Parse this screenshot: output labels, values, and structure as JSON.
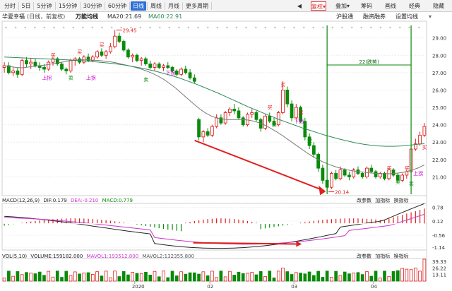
{
  "toolbar": {
    "periods": [
      "分时",
      "5日",
      "5分钟",
      "15分钟",
      "30分钟",
      "60分钟",
      "日线",
      "周线",
      "月线",
      "更多周期"
    ],
    "active_period": "日线",
    "right_items": [
      "复权",
      "叠加",
      "筹码",
      "画线",
      "经典",
      "隐藏"
    ],
    "active_right": "复权"
  },
  "info": {
    "name": "华夏幸福",
    "mode": "(日线，前复权)",
    "indicator": "万能均线",
    "ma20": "MA20:21.69",
    "ma60": "MA60:22.91",
    "links": [
      "沪股通",
      "融资融券",
      "设置均线"
    ]
  },
  "main_axis": [
    "29.00",
    "28.00",
    "27.00",
    "26.00",
    "25.00",
    "24.00",
    "23.00",
    "22.00",
    "21.00"
  ],
  "annotations": {
    "high": "29.45",
    "low": "20.14",
    "span": "22(跌势)"
  },
  "signals": {
    "buy": "买",
    "sell": "卖",
    "up": "上拐",
    "down": "下拐"
  },
  "macd": {
    "title": "MACD(12,26,9)",
    "dif": "DIF:0.179",
    "dea": "DEA:-0.210",
    "macd": "MACD:0.779",
    "links": [
      "改参数",
      "加指标",
      "换指标"
    ],
    "axis": [
      "0.78",
      "0.12",
      "-0.56",
      "-1.14"
    ]
  },
  "vol": {
    "title": "VOL(5,10)",
    "volume": "VOLUME:159182.000",
    "mavol1": "MAVOL1:193512.800",
    "mavol2": "MAVOL2:132355.800",
    "links": [
      "改参数",
      "加指标",
      "换指标"
    ],
    "axis": [
      "39.33",
      "26.22",
      "13.11"
    ]
  },
  "x_labels": [
    "2020",
    "02",
    "03",
    "04"
  ],
  "colors": {
    "up": "#e02020",
    "down": "#0a8a0a",
    "ma20": "#333333",
    "ma60": "#2e8b57",
    "dea": "#cc33cc",
    "arrow": "#e02020",
    "guide": "#0a8a0a",
    "signal": "#cc00cc"
  },
  "chart_data": {
    "type": "candlestick",
    "ylim": [
      20,
      29.8
    ],
    "candles": [
      [
        27.3,
        27.6,
        27.0,
        27.4
      ],
      [
        27.4,
        27.6,
        26.9,
        27.0
      ],
      [
        27.0,
        27.3,
        26.8,
        27.1
      ],
      [
        27.1,
        27.3,
        26.7,
        26.9
      ],
      [
        26.9,
        27.8,
        26.8,
        27.7
      ],
      [
        27.7,
        27.9,
        27.3,
        27.5
      ],
      [
        27.5,
        27.8,
        27.2,
        27.6
      ],
      [
        27.6,
        27.8,
        27.3,
        27.4
      ],
      [
        27.4,
        27.6,
        27.1,
        27.3
      ],
      [
        27.3,
        27.5,
        27.0,
        27.2
      ],
      [
        27.2,
        27.7,
        27.1,
        27.6
      ],
      [
        27.6,
        27.9,
        27.4,
        27.8
      ],
      [
        27.8,
        27.9,
        27.4,
        27.5
      ],
      [
        27.5,
        27.6,
        27.1,
        27.2
      ],
      [
        27.2,
        27.3,
        26.9,
        27.1
      ],
      [
        27.1,
        27.8,
        27.0,
        27.7
      ],
      [
        27.7,
        27.9,
        27.4,
        27.8
      ],
      [
        27.8,
        27.9,
        27.5,
        27.6
      ],
      [
        27.6,
        28.0,
        27.5,
        27.9
      ],
      [
        27.9,
        28.1,
        27.6,
        27.7
      ],
      [
        27.7,
        28.0,
        27.6,
        27.9
      ],
      [
        27.9,
        28.3,
        27.8,
        28.2
      ],
      [
        28.2,
        28.4,
        27.9,
        28.0
      ],
      [
        28.0,
        28.3,
        27.8,
        28.2
      ],
      [
        28.2,
        28.7,
        28.1,
        28.5
      ],
      [
        28.5,
        29.45,
        28.4,
        29.1
      ],
      [
        29.1,
        29.3,
        28.7,
        28.8
      ],
      [
        28.8,
        28.9,
        28.2,
        28.3
      ],
      [
        28.3,
        28.4,
        27.8,
        27.9
      ],
      [
        27.9,
        28.1,
        27.6,
        28.0
      ],
      [
        28.0,
        28.1,
        27.6,
        27.7
      ],
      [
        27.7,
        27.9,
        27.4,
        27.8
      ],
      [
        27.8,
        27.9,
        27.4,
        27.5
      ],
      [
        27.5,
        27.7,
        27.2,
        27.3
      ],
      [
        27.3,
        27.6,
        27.1,
        27.5
      ],
      [
        27.5,
        27.6,
        27.2,
        27.3
      ],
      [
        27.3,
        27.5,
        27.1,
        27.4
      ],
      [
        27.4,
        27.6,
        27.2,
        27.3
      ],
      [
        27.3,
        27.4,
        27.0,
        27.1
      ],
      [
        27.1,
        27.2,
        26.8,
        26.9
      ],
      [
        26.9,
        27.3,
        26.8,
        27.2
      ],
      [
        27.2,
        27.4,
        26.9,
        27.0
      ],
      [
        27.0,
        27.2,
        26.6,
        26.7
      ],
      [
        26.7,
        26.9,
        26.4,
        26.5
      ],
      [
        24.3,
        24.4,
        23.1,
        23.3
      ],
      [
        23.3,
        23.7,
        23.0,
        23.6
      ],
      [
        23.6,
        23.8,
        23.3,
        23.4
      ],
      [
        23.4,
        24.0,
        23.3,
        23.9
      ],
      [
        23.9,
        24.6,
        23.8,
        24.4
      ],
      [
        24.4,
        24.6,
        24.0,
        24.1
      ],
      [
        24.1,
        24.8,
        24.0,
        24.7
      ],
      [
        24.7,
        25.0,
        24.5,
        24.9
      ],
      [
        24.9,
        25.2,
        24.6,
        24.8
      ],
      [
        24.8,
        25.0,
        24.3,
        24.4
      ],
      [
        24.4,
        24.5,
        23.9,
        24.0
      ],
      [
        24.0,
        24.7,
        23.9,
        24.6
      ],
      [
        24.6,
        24.9,
        24.4,
        24.7
      ],
      [
        24.7,
        24.8,
        24.2,
        24.3
      ],
      [
        24.3,
        24.4,
        23.6,
        23.8
      ],
      [
        23.8,
        24.6,
        23.7,
        24.5
      ],
      [
        24.5,
        24.7,
        24.1,
        24.2
      ],
      [
        24.2,
        24.4,
        23.9,
        24.0
      ],
      [
        24.0,
        24.8,
        23.9,
        24.7
      ],
      [
        24.7,
        26.5,
        24.6,
        26.0
      ],
      [
        26.0,
        26.2,
        25.0,
        25.2
      ],
      [
        25.2,
        25.4,
        24.2,
        24.4
      ],
      [
        24.4,
        25.2,
        24.3,
        25.0
      ],
      [
        25.0,
        25.1,
        24.1,
        24.2
      ],
      [
        24.2,
        24.4,
        23.1,
        23.3
      ],
      [
        23.3,
        23.5,
        22.6,
        22.8
      ],
      [
        22.8,
        23.0,
        22.1,
        22.3
      ],
      [
        22.3,
        22.4,
        21.3,
        21.5
      ],
      [
        21.5,
        21.7,
        20.6,
        20.8
      ],
      [
        20.8,
        20.9,
        20.14,
        20.4
      ],
      [
        20.4,
        21.3,
        20.3,
        21.2
      ],
      [
        21.2,
        21.4,
        20.8,
        20.9
      ],
      [
        20.9,
        21.6,
        20.8,
        21.4
      ],
      [
        21.4,
        21.5,
        21.0,
        21.1
      ],
      [
        21.1,
        21.3,
        20.8,
        21.0
      ],
      [
        21.0,
        21.5,
        20.9,
        21.4
      ],
      [
        21.4,
        21.6,
        21.1,
        21.2
      ],
      [
        21.2,
        21.3,
        20.9,
        21.0
      ],
      [
        21.0,
        21.6,
        20.9,
        21.5
      ],
      [
        21.5,
        21.7,
        21.2,
        21.3
      ],
      [
        21.3,
        21.4,
        20.9,
        21.0
      ],
      [
        21.0,
        21.3,
        20.9,
        21.2
      ],
      [
        21.2,
        21.3,
        20.8,
        20.9
      ],
      [
        20.9,
        21.5,
        20.8,
        21.4
      ],
      [
        21.4,
        21.5,
        21.0,
        21.1
      ],
      [
        21.1,
        21.2,
        20.7,
        20.8
      ],
      [
        20.8,
        21.2,
        20.7,
        21.1
      ],
      [
        21.1,
        21.4,
        20.9,
        21.3
      ],
      [
        21.3,
        22.8,
        21.2,
        22.6
      ],
      [
        22.6,
        23.2,
        22.5,
        22.9
      ],
      [
        22.9,
        23.6,
        22.8,
        23.4
      ],
      [
        23.4,
        24.1,
        23.3,
        23.9
      ]
    ],
    "ma20": [
      27.4,
      27.35,
      27.3,
      27.28,
      27.32,
      27.36,
      27.4,
      27.44,
      27.5,
      27.56,
      27.62,
      27.68,
      27.72,
      27.74,
      27.74,
      27.72,
      27.7,
      27.66,
      27.62,
      27.56,
      27.48,
      27.4,
      27.32,
      27.22,
      27.1,
      26.96,
      26.8,
      26.6,
      26.36,
      26.1,
      25.8,
      25.5,
      25.2,
      24.92,
      24.68,
      24.5,
      24.38,
      24.32,
      24.3,
      24.3,
      24.3,
      24.28,
      24.22,
      24.12,
      23.98,
      23.8,
      23.6,
      23.38,
      23.14,
      22.9,
      22.66,
      22.42,
      22.2,
      22.0,
      21.84,
      21.7,
      21.58,
      21.48,
      21.4,
      21.34,
      21.3,
      21.26,
      21.22,
      21.2,
      21.18,
      21.18,
      21.2,
      21.24,
      21.3,
      21.4,
      21.52,
      21.69
    ],
    "ma60": [
      27.9,
      27.88,
      27.86,
      27.84,
      27.82,
      27.8,
      27.78,
      27.76,
      27.74,
      27.72,
      27.7,
      27.66,
      27.62,
      27.58,
      27.54,
      27.48,
      27.42,
      27.34,
      27.26,
      27.16,
      27.06,
      26.94,
      26.82,
      26.68,
      26.52,
      26.36,
      26.18,
      26.0,
      25.82,
      25.62,
      25.42,
      25.22,
      25.02,
      24.84,
      24.66,
      24.48,
      24.3,
      24.14,
      23.98,
      23.82,
      23.68,
      23.54,
      23.4,
      23.28,
      23.16,
      23.06,
      22.96,
      22.88,
      22.82,
      22.78,
      22.76,
      22.76,
      22.78,
      22.82,
      22.87,
      22.91
    ],
    "low_point": 20.14,
    "high_point": 29.45
  }
}
